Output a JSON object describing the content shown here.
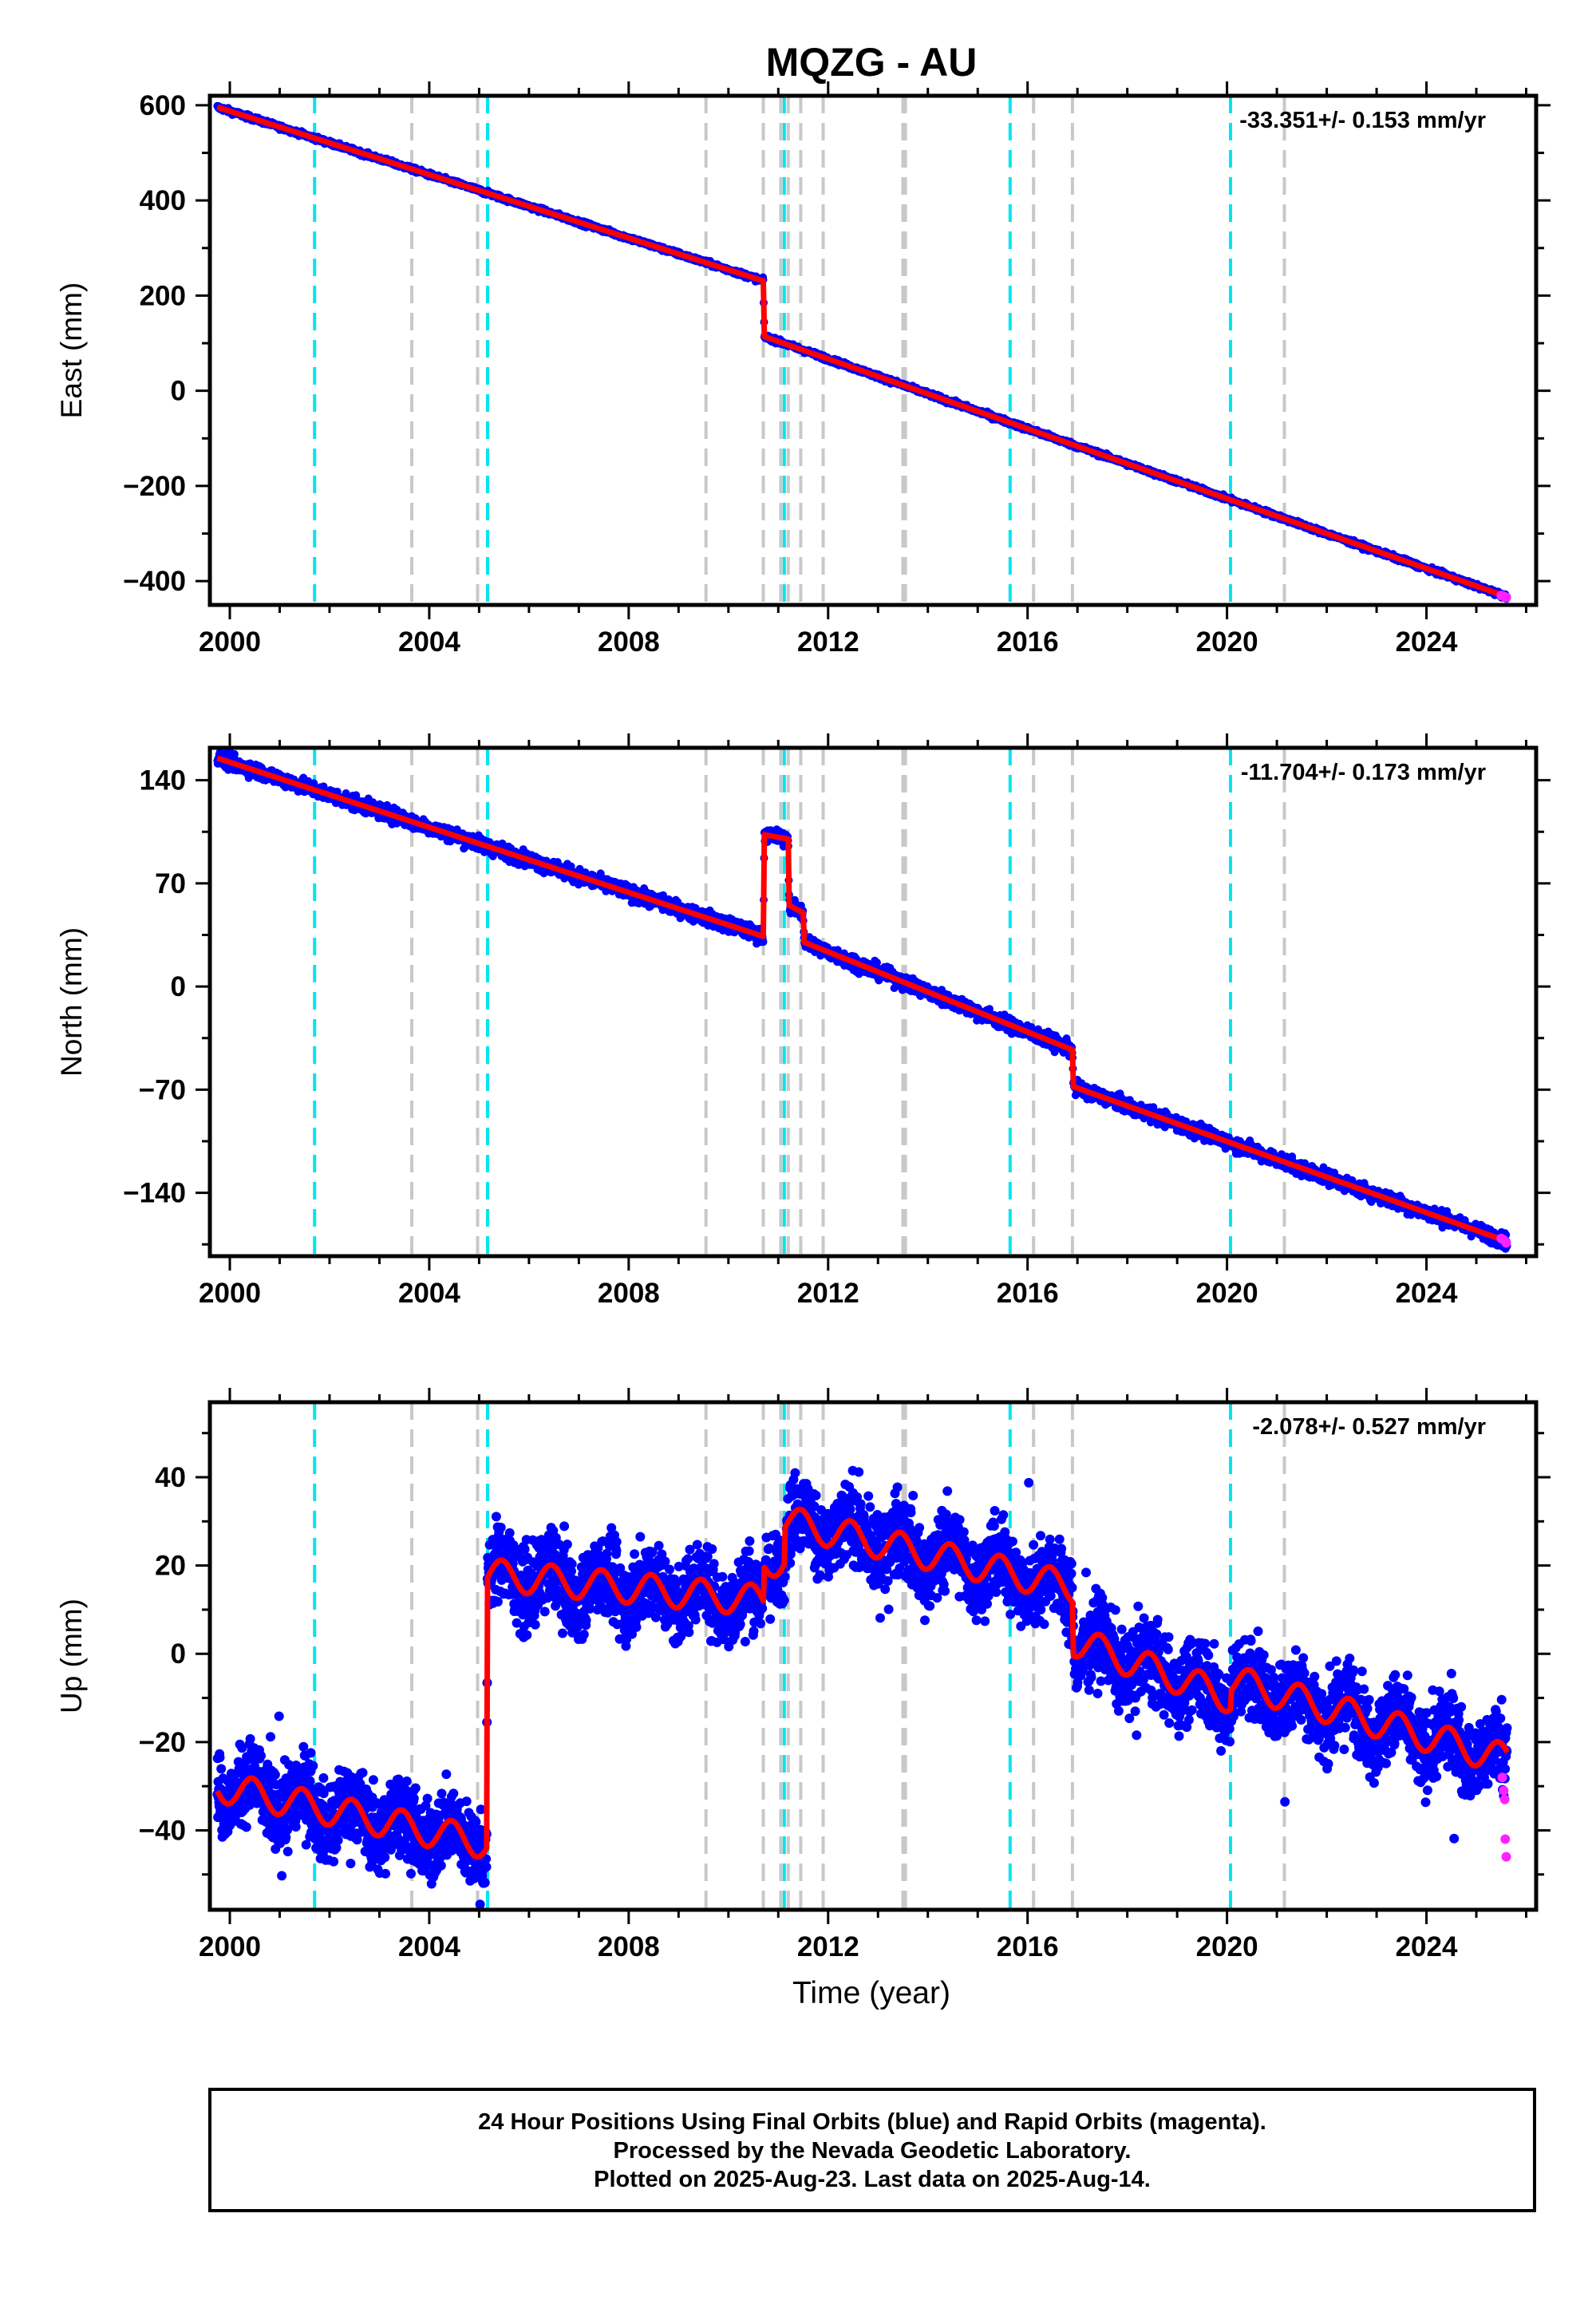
{
  "title": "MQZG - AU",
  "colors": {
    "final_points": "#0000ff",
    "rapid_points": "#ff22ff",
    "model_line": "#ff0000",
    "equipment_change": "#00e5ee",
    "earthquake": "#c8c8c8",
    "frame": "#000000"
  },
  "x_axis": {
    "label": "Time (year)",
    "range": [
      1999.6,
      2026.2
    ],
    "ticks": [
      2000,
      2004,
      2008,
      2012,
      2016,
      2020,
      2024
    ],
    "tick_labels": [
      "2000",
      "2004",
      "2008",
      "2012",
      "2016",
      "2020",
      "2024"
    ],
    "minor_tick_step": 1
  },
  "vertical_markers": {
    "equipment_change_years": [
      2001.7,
      2005.17,
      2011.12,
      2015.65,
      2020.07
    ],
    "earthquake_years": [
      2003.65,
      2004.97,
      2009.55,
      2010.7,
      2011.05,
      2011.2,
      2011.45,
      2011.9,
      2013.5,
      2013.55,
      2016.12,
      2016.9,
      2021.15
    ]
  },
  "footer": {
    "line1": "24 Hour Positions Using Final Orbits (blue) and Rapid Orbits (magenta).",
    "line2": "Processed by the Nevada Geodetic Laboratory.",
    "line3": "Plotted on 2025-Aug-23. Last data on 2025-Aug-14."
  },
  "chart_data": [
    {
      "type": "scatter",
      "component": "East",
      "ylabel": "East (mm)",
      "rate_text": "-33.351+/- 0.153 mm/yr",
      "ylim": [
        -450,
        620
      ],
      "yticks": [
        -400,
        -200,
        0,
        200,
        400,
        600
      ],
      "ytick_labels": [
        "−400",
        "−200",
        "0",
        "200",
        "400",
        "600"
      ],
      "minor_tick_step": 100,
      "start_year": 1999.75,
      "end_year": 2025.62,
      "trend_x": [
        1999.75,
        2010.7,
        2010.72,
        2025.62
      ],
      "trend_y": [
        596,
        231,
        114,
        -433
      ],
      "noise_sd": 2.5,
      "rapid_points": [
        [
          2025.5,
          -430
        ],
        [
          2025.55,
          -432
        ],
        [
          2025.6,
          -434
        ]
      ]
    },
    {
      "type": "scatter",
      "component": "North",
      "ylabel": "North (mm)",
      "rate_text": "-11.704+/- 0.173 mm/yr",
      "ylim": [
        -183,
        162
      ],
      "yticks": [
        -140,
        -70,
        0,
        70,
        140
      ],
      "ytick_labels": [
        "−140",
        "−70",
        "0",
        "70",
        "140"
      ],
      "minor_tick_step": 35,
      "start_year": 1999.75,
      "end_year": 2025.62,
      "trend_x": [
        1999.75,
        2010.7,
        2010.72,
        2011.2,
        2011.22,
        2011.5,
        2011.52,
        2016.9,
        2016.92,
        2025.62
      ],
      "trend_y": [
        155,
        34,
        103,
        100,
        55,
        50,
        30,
        -43,
        -68,
        -173
      ],
      "noise_sd": 2.5,
      "rapid_points": [
        [
          2025.5,
          -171
        ],
        [
          2025.55,
          -172
        ],
        [
          2025.6,
          -174
        ]
      ]
    },
    {
      "type": "scatter",
      "component": "Up",
      "ylabel": "Up (mm)",
      "rate_text": "-2.078+/- 0.527 mm/yr",
      "ylim": [
        -58,
        57
      ],
      "yticks": [
        -40,
        -20,
        0,
        20,
        40
      ],
      "ytick_labels": [
        "−40",
        "−20",
        "0",
        "20",
        "40"
      ],
      "minor_tick_step": 10,
      "start_year": 1999.75,
      "end_year": 2025.62,
      "trend_x": [
        1999.75,
        2005.15,
        2005.17,
        2010.7,
        2010.72,
        2011.12,
        2011.14,
        2016.9,
        2016.92,
        2020.07,
        2020.09,
        2025.62
      ],
      "trend_y": [
        -30,
        -43,
        18,
        12,
        20,
        22,
        30,
        15,
        3,
        -10,
        -6,
        -24
      ],
      "seasonal_amplitude": 3.5,
      "noise_sd": 4.5,
      "rapid_points": [
        [
          2025.52,
          -28
        ],
        [
          2025.55,
          -31
        ],
        [
          2025.57,
          -33
        ],
        [
          2025.58,
          -42
        ],
        [
          2025.6,
          -46
        ]
      ]
    }
  ]
}
